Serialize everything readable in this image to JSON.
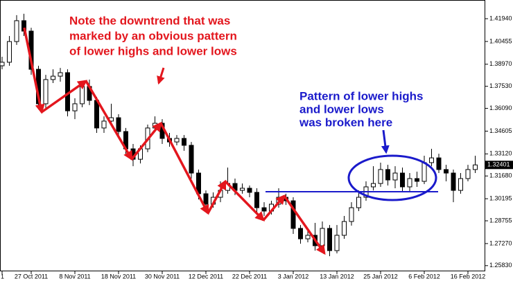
{
  "chart_data": {
    "type": "candlestick",
    "categories": [
      "1",
      null,
      null,
      null,
      "27 Oct 2011",
      null,
      null,
      null,
      null,
      null,
      "8 Nov 2011",
      null,
      null,
      null,
      null,
      null,
      "18 Nov 2011",
      null,
      null,
      null,
      null,
      null,
      "30 Nov 2011",
      null,
      null,
      null,
      null,
      null,
      "12 Dec 2011",
      null,
      null,
      null,
      null,
      null,
      "22 Dec 2011",
      null,
      null,
      null,
      null,
      null,
      "3 Jan 2012",
      null,
      null,
      null,
      null,
      null,
      "13 Jan 2012",
      null,
      null,
      null,
      null,
      null,
      "25 Jan 2012",
      null,
      null,
      null,
      null,
      null,
      "6 Feb 2012",
      null,
      null,
      null,
      null,
      null,
      "16 Feb 2012",
      null
    ],
    "open": [
      1.3887,
      1.391,
      1.4045,
      1.4181,
      1.4113,
      1.3864,
      1.3639,
      1.3797,
      1.3819,
      1.3842,
      1.3593,
      1.3639,
      1.3752,
      1.3661,
      1.3481,
      1.3526,
      1.3548,
      1.3458,
      1.3345,
      1.3277,
      1.3345,
      1.3481,
      1.3512,
      1.3413,
      1.339,
      1.3413,
      1.3368,
      1.3187,
      1.3052,
      1.2984,
      1.3029,
      1.3074,
      1.3119,
      1.3074,
      1.3088,
      1.3061,
      1.2961,
      1.2939,
      1.2984,
      1.3029,
      1.3006,
      1.2826,
      1.2758,
      1.2781,
      1.2713,
      1.2826,
      1.2681,
      1.2781,
      1.2871,
      1.2961,
      1.3029,
      1.3097,
      1.3119,
      1.321,
      1.3142,
      1.3187,
      1.3097,
      1.3151,
      1.3133,
      1.3255,
      1.3286,
      1.321,
      1.3187,
      1.3074,
      1.3151,
      1.321
    ],
    "high": [
      1.3946,
      1.4081,
      1.4217,
      1.4226,
      1.4135,
      1.3887,
      1.3828,
      1.3864,
      1.3873,
      1.3864,
      1.3675,
      1.3783,
      1.3797,
      1.3684,
      1.3557,
      1.3639,
      1.3571,
      1.3481,
      1.3377,
      1.3368,
      1.3503,
      1.3557,
      1.3539,
      1.3449,
      1.3435,
      1.3435,
      1.339,
      1.321,
      1.3074,
      1.3061,
      1.3133,
      1.3223,
      1.3151,
      1.3119,
      1.3106,
      1.3088,
      1.2997,
      1.3006,
      1.3088,
      1.3052,
      1.3029,
      1.2848,
      1.2817,
      1.2862,
      1.2871,
      1.2848,
      1.2848,
      1.2907,
      1.2997,
      1.3074,
      1.3133,
      1.3232,
      1.3255,
      1.3241,
      1.3232,
      1.3223,
      1.3187,
      1.3196,
      1.33,
      1.3345,
      1.3313,
      1.3241,
      1.321,
      1.3187,
      1.3241,
      1.33
    ],
    "low": [
      1.3864,
      1.3887,
      1.4023,
      1.4081,
      1.3828,
      1.3602,
      1.3612,
      1.3774,
      1.3783,
      1.3557,
      1.3539,
      1.3616,
      1.363,
      1.3449,
      1.3449,
      1.3494,
      1.3422,
      1.3313,
      1.3232,
      1.325,
      1.3323,
      1.3458,
      1.3377,
      1.3359,
      1.3368,
      1.3332,
      1.3151,
      1.3015,
      1.2939,
      1.2961,
      1.2997,
      1.3052,
      1.3043,
      1.3052,
      1.3029,
      1.2925,
      1.2907,
      1.2916,
      1.2961,
      1.2979,
      1.279,
      1.2726,
      1.2735,
      1.2681,
      1.269,
      1.2645,
      1.2663,
      1.2758,
      1.2844,
      1.2939,
      1.3006,
      1.3074,
      1.3097,
      1.3106,
      1.3088,
      1.3061,
      1.307,
      1.3097,
      1.3115,
      1.3232,
      1.3187,
      1.3133,
      1.2997,
      1.3052,
      1.3133,
      1.3187
    ],
    "close": [
      1.391,
      1.4045,
      1.4181,
      1.4113,
      1.3864,
      1.3639,
      1.3797,
      1.3819,
      1.3842,
      1.3593,
      1.3639,
      1.3752,
      1.3661,
      1.3481,
      1.3526,
      1.3548,
      1.3458,
      1.3345,
      1.3277,
      1.3345,
      1.3481,
      1.3512,
      1.3413,
      1.339,
      1.3413,
      1.3368,
      1.3187,
      1.3052,
      1.2984,
      1.3029,
      1.3074,
      1.3119,
      1.3074,
      1.3088,
      1.3061,
      1.2961,
      1.2939,
      1.2984,
      1.3029,
      1.3006,
      1.2826,
      1.2758,
      1.2781,
      1.2713,
      1.2826,
      1.2681,
      1.2781,
      1.2871,
      1.2961,
      1.3029,
      1.3097,
      1.3119,
      1.321,
      1.3142,
      1.3187,
      1.3097,
      1.3151,
      1.3133,
      1.3255,
      1.3286,
      1.321,
      1.3187,
      1.3074,
      1.3151,
      1.321,
      1.32401
    ],
    "up_color": "#ffffff",
    "down_color": "#000000",
    "ylim": [
      1.2546,
      1.4316
    ],
    "yticks": [
      {
        "value": 1.4194,
        "label": "1.41940"
      },
      1.40455,
      {
        "value": 1.3897,
        "label": "1.38970"
      },
      {
        "value": 1.3753,
        "label": "1.37530"
      },
      {
        "value": 1.3609,
        "label": "1.36090"
      },
      1.34605,
      {
        "value": 1.3312,
        "label": "1.33120"
      },
      {
        "value": 1.3168,
        "label": "1.31680"
      },
      1.30195,
      1.28755,
      {
        "value": 1.2727,
        "label": "1.27270"
      },
      {
        "value": 1.2583,
        "label": "1.25830"
      }
    ],
    "annotations": [
      {
        "color": "#e3161d",
        "lines": [
          "Note the downtrend that was",
          "marked by an obvious pattern",
          "of lower highs and lower lows"
        ]
      },
      {
        "color": "#1a1acb",
        "lines": [
          "Pattern of lower highs",
          "and lower lows",
          "was broken here"
        ]
      }
    ]
  }
}
